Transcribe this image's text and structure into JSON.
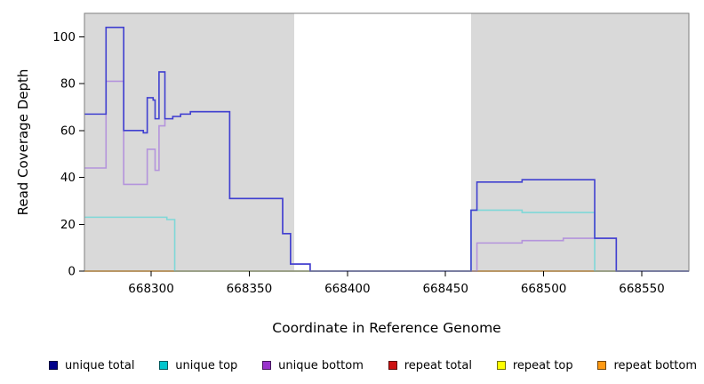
{
  "chart_data": {
    "type": "line",
    "step": true,
    "title": "",
    "xlabel": "Coordinate in Reference Genome",
    "ylabel": "Read Coverage Depth",
    "xlim": [
      668266,
      668574
    ],
    "ylim": [
      0,
      110
    ],
    "xticks": [
      668300,
      668350,
      668400,
      668450,
      668500,
      668550
    ],
    "yticks": [
      0,
      20,
      40,
      60,
      80,
      100
    ],
    "grid": false,
    "legend_position": "bottom",
    "background_color": "#ffffff",
    "shaded_regions": [
      {
        "x0": 668266,
        "x1": 668373,
        "color": "#d9d9d9"
      },
      {
        "x0": 668463,
        "x1": 668574,
        "color": "#d9d9d9"
      }
    ],
    "series": [
      {
        "name": "repeat total",
        "line_color": "#cc3333",
        "points": [
          [
            668266,
            0
          ]
        ]
      },
      {
        "name": "repeat top",
        "line_color": "#eeee44",
        "points": [
          [
            668266,
            0
          ]
        ]
      },
      {
        "name": "repeat bottom",
        "line_color": "#ffa030",
        "points": [
          [
            668266,
            0
          ]
        ]
      },
      {
        "name": "unique bottom",
        "line_color": "#b494dc",
        "points": [
          [
            668266,
            44
          ],
          [
            668277,
            81
          ],
          [
            668286,
            37
          ],
          [
            668298,
            52
          ],
          [
            668302,
            43
          ],
          [
            668304,
            62
          ],
          [
            668307,
            65
          ],
          [
            668311,
            66
          ],
          [
            668315,
            67
          ],
          [
            668320,
            68
          ],
          [
            668340,
            31
          ],
          [
            668367,
            16
          ],
          [
            668371,
            3
          ],
          [
            668381,
            0
          ],
          [
            668466,
            12
          ],
          [
            668489,
            13
          ],
          [
            668510,
            14
          ],
          [
            668537,
            0
          ]
        ]
      },
      {
        "name": "unique top",
        "line_color": "#7fd8d8",
        "points": [
          [
            668266,
            23
          ],
          [
            668308,
            22
          ],
          [
            668312,
            0
          ],
          [
            668463,
            26
          ],
          [
            668489,
            25
          ],
          [
            668526,
            0
          ]
        ]
      },
      {
        "name": "unique total",
        "line_color": "#4040d0",
        "points": [
          [
            668266,
            67
          ],
          [
            668277,
            104
          ],
          [
            668286,
            60
          ],
          [
            668296,
            59
          ],
          [
            668298,
            74
          ],
          [
            668301,
            73
          ],
          [
            668302,
            65
          ],
          [
            668304,
            85
          ],
          [
            668307,
            65
          ],
          [
            668311,
            66
          ],
          [
            668315,
            67
          ],
          [
            668320,
            68
          ],
          [
            668340,
            31
          ],
          [
            668367,
            16
          ],
          [
            668371,
            3
          ],
          [
            668381,
            0
          ],
          [
            668463,
            26
          ],
          [
            668466,
            38
          ],
          [
            668489,
            39
          ],
          [
            668526,
            14
          ],
          [
            668537,
            0
          ]
        ]
      }
    ],
    "legend": [
      {
        "label": "unique total",
        "color": "#00008b"
      },
      {
        "label": "unique top",
        "color": "#00c5cd"
      },
      {
        "label": "unique bottom",
        "color": "#9932cc"
      },
      {
        "label": "repeat total",
        "color": "#cd1111"
      },
      {
        "label": "repeat top",
        "color": "#ffff00"
      },
      {
        "label": "repeat bottom",
        "color": "#ff9912"
      }
    ]
  }
}
